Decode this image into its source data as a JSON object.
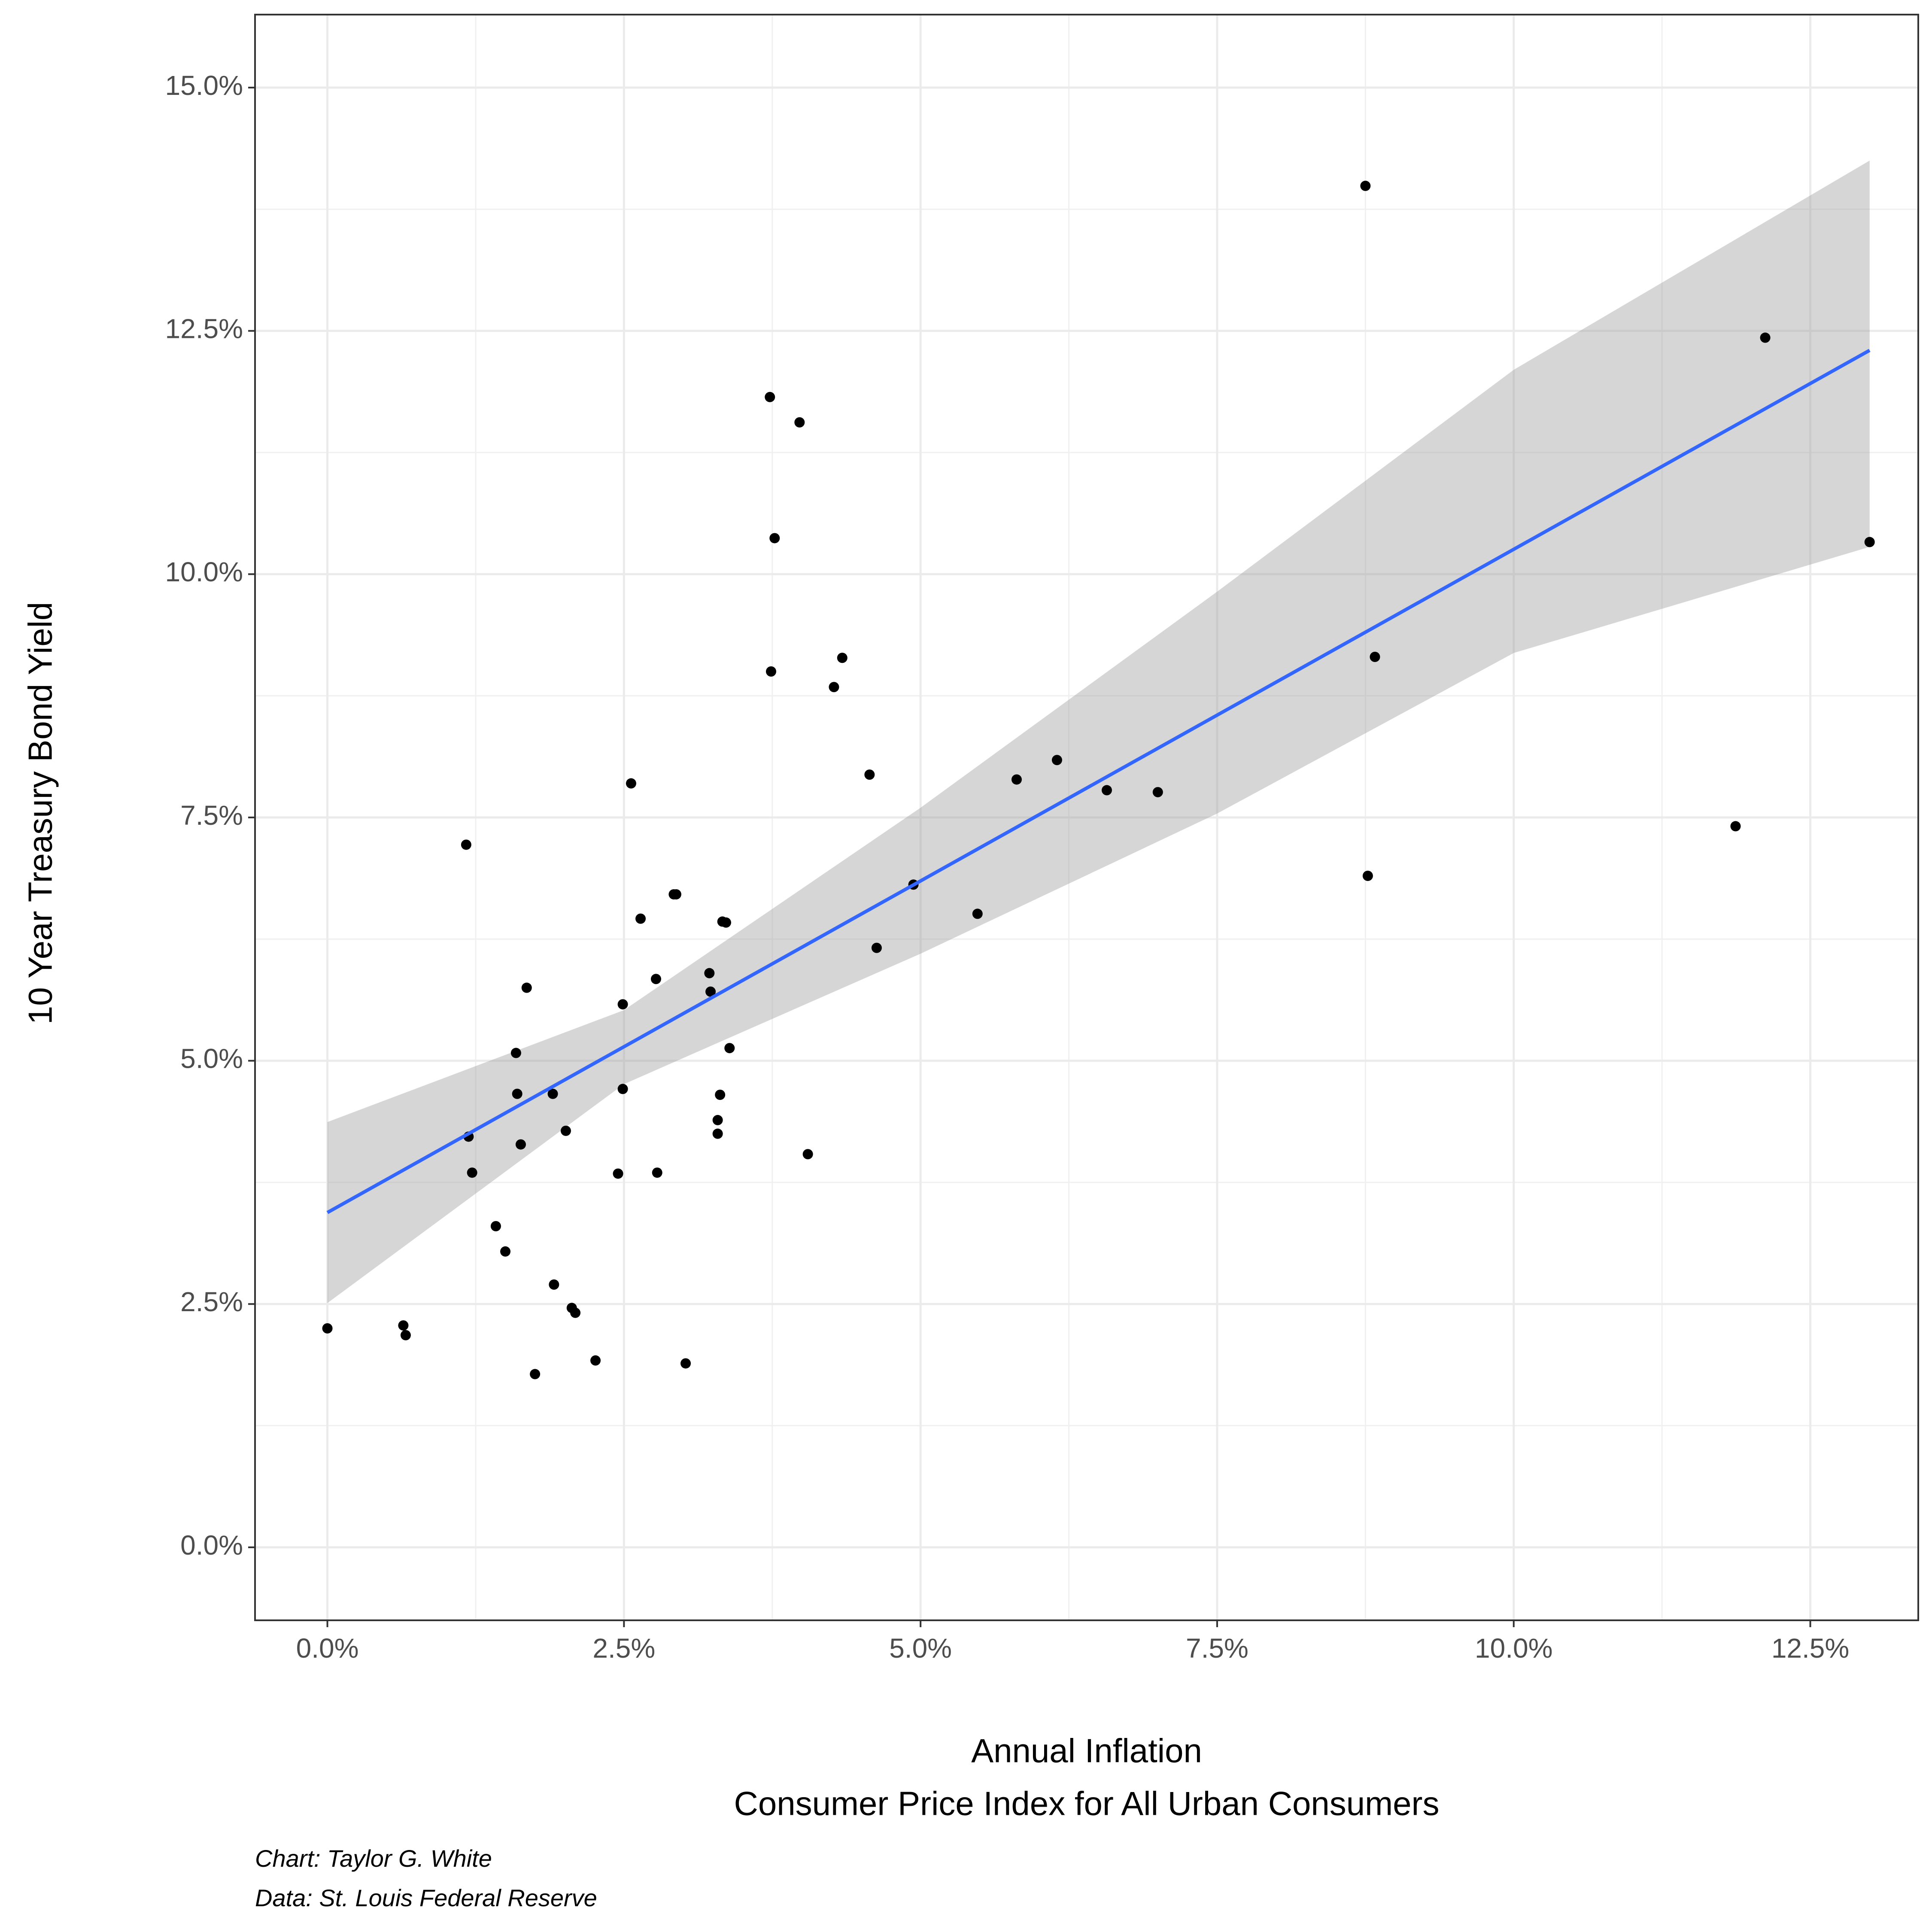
{
  "chart_data": {
    "type": "scatter",
    "xlabel": [
      "Annual Inflation",
      "Consumer Price Index for All Urban Consumers"
    ],
    "ylabel": "10 Year Treasury Bond Yield",
    "caption": [
      "Chart: Taylor G. White",
      "Data: St. Louis Federal Reserve"
    ],
    "x": [
      0.0,
      0.64,
      0.66,
      1.17,
      1.19,
      1.22,
      1.42,
      1.5,
      1.59,
      1.6,
      1.63,
      1.68,
      1.75,
      1.9,
      1.91,
      2.01,
      2.06,
      2.09,
      2.26,
      2.45,
      2.49,
      2.49,
      2.56,
      2.64,
      2.77,
      2.78,
      2.92,
      2.94,
      3.02,
      3.22,
      3.23,
      3.29,
      3.29,
      3.31,
      3.33,
      3.36,
      3.39,
      3.73,
      3.74,
      3.77,
      3.98,
      4.05,
      4.27,
      4.34,
      4.57,
      4.63,
      4.94,
      5.48,
      5.81,
      6.15,
      6.57,
      7.0,
      8.75,
      8.77,
      8.83,
      11.87,
      12.12,
      13.0
    ],
    "values": [
      2.25,
      2.28,
      2.18,
      7.22,
      4.22,
      3.85,
      3.3,
      3.04,
      5.08,
      4.66,
      4.14,
      5.75,
      1.78,
      4.66,
      2.7,
      4.28,
      2.46,
      2.41,
      1.92,
      3.84,
      5.58,
      4.71,
      7.85,
      6.46,
      5.84,
      3.85,
      6.71,
      6.71,
      1.89,
      5.9,
      5.71,
      4.39,
      4.25,
      4.65,
      6.43,
      6.42,
      5.13,
      11.82,
      9.0,
      10.37,
      11.56,
      4.04,
      8.84,
      9.14,
      7.94,
      6.16,
      6.81,
      6.51,
      7.89,
      8.09,
      7.78,
      7.76,
      13.99,
      6.9,
      9.15,
      7.41,
      12.43,
      10.33
    ],
    "color": "#000000",
    "fit": {
      "x": [
        0,
        13
      ],
      "values": [
        3.44,
        12.3
      ],
      "color": "#3366ff"
    },
    "band": {
      "x": [
        0,
        2.5,
        5,
        7.5,
        10,
        13
      ],
      "lower": [
        2.51,
        4.76,
        6.1,
        7.54,
        9.19,
        10.28
      ],
      "upper": [
        4.37,
        5.52,
        7.6,
        9.82,
        12.1,
        14.25
      ],
      "color": "#999999"
    },
    "xlim": [
      -0.61,
      13.41
    ],
    "ylim": [
      -0.75,
      15.75
    ],
    "xticks": [
      {
        "value": 0,
        "label": "0.0%"
      },
      {
        "value": 2.5,
        "label": "2.5%"
      },
      {
        "value": 5,
        "label": "5.0%"
      },
      {
        "value": 7.5,
        "label": "7.5%"
      },
      {
        "value": 10,
        "label": "10.0%"
      },
      {
        "value": 12.5,
        "label": "12.5%"
      }
    ],
    "yticks": [
      {
        "value": 0,
        "label": "0.0%"
      },
      {
        "value": 2.5,
        "label": "2.5%"
      },
      {
        "value": 5,
        "label": "5.0%"
      },
      {
        "value": 7.5,
        "label": "7.5%"
      },
      {
        "value": 10,
        "label": "10.0%"
      },
      {
        "value": 12.5,
        "label": "12.5%"
      },
      {
        "value": 15,
        "label": "15.0%"
      }
    ],
    "grid": true
  }
}
